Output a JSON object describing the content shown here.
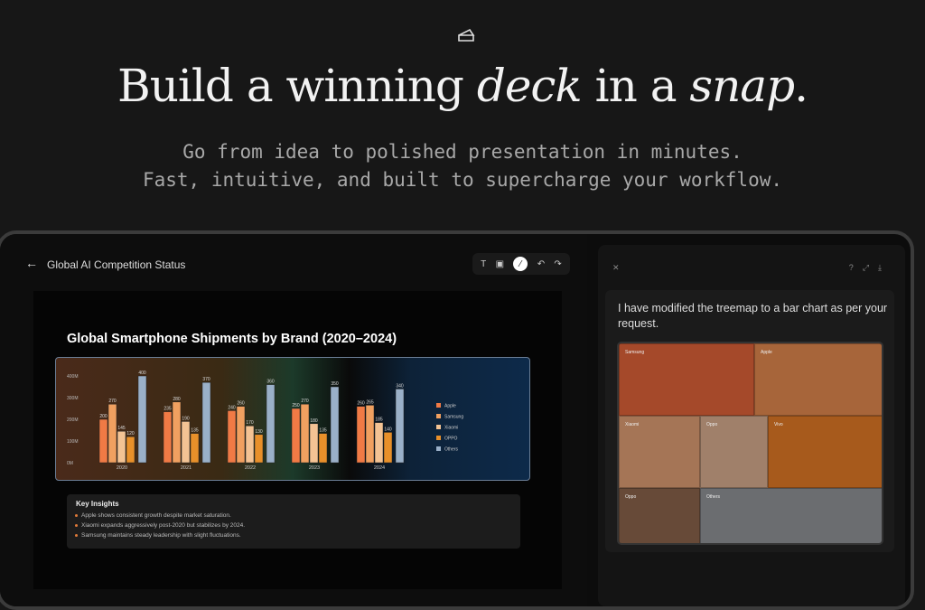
{
  "hero": {
    "title_part1": "Build a winning ",
    "title_em1": "deck",
    "title_part2": " in a ",
    "title_em2": "snap",
    "title_part3": ".",
    "subtitle_line1": "Go from idea to polished presentation in minutes.",
    "subtitle_line2": "Fast, intuitive, and built to supercharge your workflow."
  },
  "editor": {
    "title": "Global AI Competition Status",
    "back_icon": "arrow-left-icon",
    "toolbar": [
      {
        "icon": "text-icon",
        "glyph": "T"
      },
      {
        "icon": "image-icon",
        "glyph": "▣"
      },
      {
        "icon": "magic-wand-icon",
        "glyph": "⁄"
      },
      {
        "icon": "undo-icon",
        "glyph": "↶"
      },
      {
        "icon": "redo-icon",
        "glyph": "↷"
      }
    ]
  },
  "slide": {
    "title": "Global Smartphone Shipments by Brand (2020–2024)",
    "insights_title": "Key Insights",
    "insights": [
      "Apple shows consistent growth despite market saturation.",
      "Xiaomi expands aggressively post-2020 but stabilizes by 2024.",
      "Samsung maintains steady leadership with slight fluctuations."
    ]
  },
  "chart_data": {
    "type": "bar",
    "categories": [
      "2020",
      "2021",
      "2022",
      "2023",
      "2024"
    ],
    "yticks": [
      "0M",
      "100M",
      "200M",
      "300M",
      "400M"
    ],
    "ylim": [
      0,
      400
    ],
    "legend": "right",
    "series": [
      {
        "name": "Apple",
        "values": [
          200,
          235,
          240,
          250,
          260
        ],
        "color": "#f07a45"
      },
      {
        "name": "Samsung",
        "values": [
          270,
          280,
          260,
          270,
          265
        ],
        "color": "#f0a060"
      },
      {
        "name": "Xiaomi",
        "values": [
          145,
          190,
          170,
          180,
          185
        ],
        "color": "#f3c394"
      },
      {
        "name": "OPPO",
        "values": [
          120,
          135,
          130,
          135,
          140
        ],
        "color": "#e8902a"
      },
      {
        "name": "Others",
        "values": [
          400,
          370,
          360,
          350,
          340
        ],
        "color": "#9ab0c8"
      }
    ]
  },
  "assistant": {
    "close_icon": "close-icon",
    "message": "I have modified the treemap to a bar chart as per your request.",
    "treemap": [
      {
        "label": "Samsung",
        "color": "#a5492a"
      },
      {
        "label": "Apple",
        "color": "#a7653a"
      },
      {
        "label": "Xiaomi",
        "color": "#a57556"
      },
      {
        "label": "Oppo",
        "color": "#a0806a"
      },
      {
        "label": "Vivo",
        "color": "#a75a1c"
      },
      {
        "label": "Oppo",
        "color": "#674a38"
      },
      {
        "label": "Others",
        "color": "#6b6d70"
      }
    ]
  }
}
